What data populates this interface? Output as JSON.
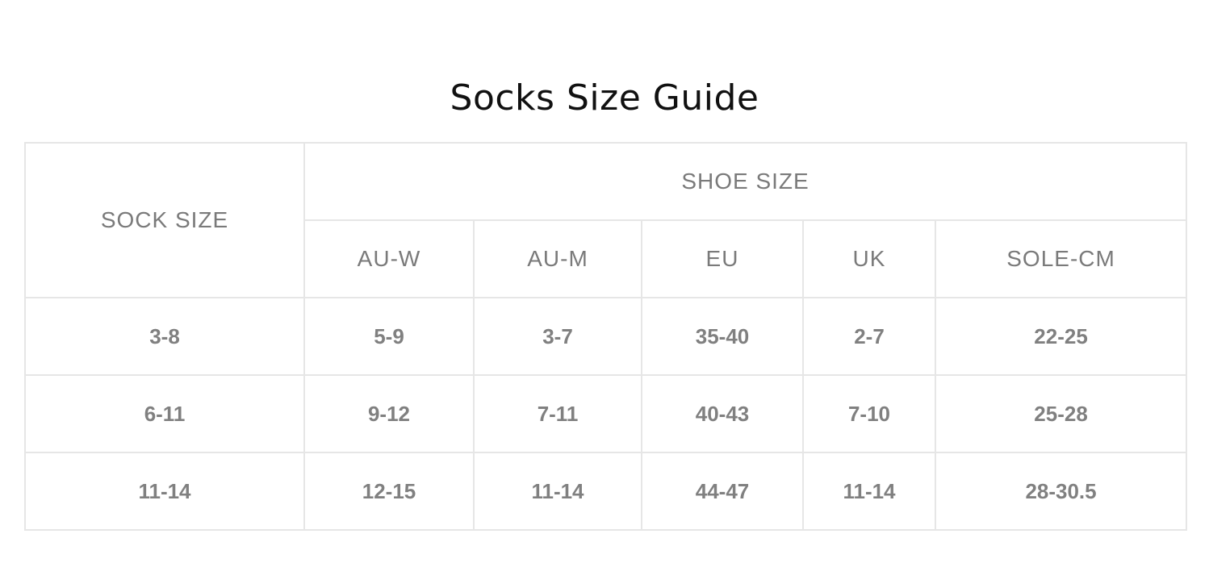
{
  "title": "Socks Size Guide",
  "table": {
    "sock_size_header": "SOCK SIZE",
    "shoe_size_header": "SHOE SIZE",
    "columns": [
      "AU-W",
      "AU-M",
      "EU",
      "UK",
      "SOLE-CM"
    ],
    "rows": [
      [
        "3-8",
        "5-9",
        "3-7",
        "35-40",
        "2-7",
        "22-25"
      ],
      [
        "6-11",
        "9-12",
        "7-11",
        "40-43",
        "7-10",
        "25-28"
      ],
      [
        "11-14",
        "12-15",
        "11-14",
        "44-47",
        "11-14",
        "28-30.5"
      ]
    ]
  },
  "colors": {
    "text": "#7a7a7a",
    "border": "#e6e6e6",
    "title": "#111111"
  }
}
